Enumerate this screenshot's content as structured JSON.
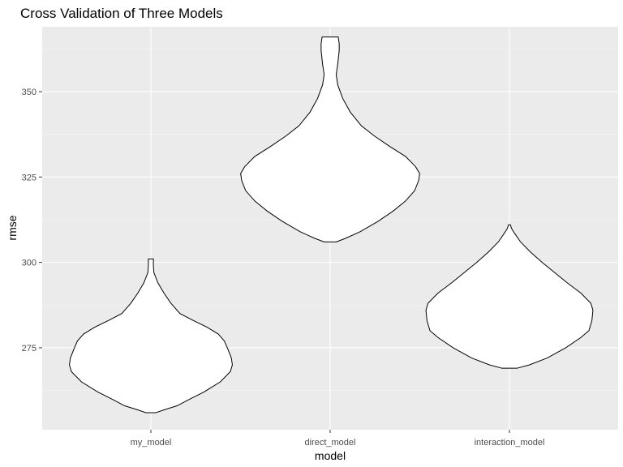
{
  "chart_data": {
    "type": "violin",
    "title": "Cross Validation of Three Models",
    "xlabel": "model",
    "ylabel": "rmse",
    "categories": [
      "my_model",
      "direct_model",
      "interaction_model"
    ],
    "ylim": [
      251,
      369
    ],
    "y_ticks": [
      275,
      300,
      325,
      350
    ],
    "grid": true,
    "colors": {
      "panel": "#ebebeb",
      "grid": "#ffffff",
      "violin_fill": "#ffffff",
      "violin_outline": "#000000"
    },
    "series": [
      {
        "category": "my_model",
        "profile": [
          [
            256,
            0.1
          ],
          [
            257,
            0.3
          ],
          [
            258,
            0.52
          ],
          [
            260,
            0.78
          ],
          [
            262,
            1.05
          ],
          [
            265,
            1.38
          ],
          [
            268,
            1.58
          ],
          [
            270,
            1.62
          ],
          [
            272,
            1.6
          ],
          [
            275,
            1.52
          ],
          [
            277,
            1.46
          ],
          [
            279,
            1.34
          ],
          [
            281,
            1.12
          ],
          [
            283,
            0.84
          ],
          [
            285,
            0.58
          ],
          [
            288,
            0.4
          ],
          [
            291,
            0.26
          ],
          [
            294,
            0.14
          ],
          [
            297,
            0.06
          ],
          [
            299,
            0.05
          ],
          [
            301,
            0.05
          ]
        ]
      },
      {
        "category": "direct_model",
        "profile": [
          [
            306,
            0.12
          ],
          [
            307,
            0.3
          ],
          [
            309,
            0.6
          ],
          [
            312,
            0.95
          ],
          [
            315,
            1.25
          ],
          [
            318,
            1.5
          ],
          [
            321,
            1.68
          ],
          [
            324,
            1.76
          ],
          [
            326,
            1.78
          ],
          [
            328,
            1.7
          ],
          [
            331,
            1.5
          ],
          [
            334,
            1.18
          ],
          [
            337,
            0.88
          ],
          [
            340,
            0.62
          ],
          [
            344,
            0.4
          ],
          [
            348,
            0.25
          ],
          [
            352,
            0.15
          ],
          [
            355,
            0.12
          ],
          [
            358,
            0.15
          ],
          [
            362,
            0.18
          ],
          [
            364,
            0.18
          ],
          [
            366,
            0.16
          ]
        ]
      },
      {
        "category": "interaction_model",
        "profile": [
          [
            269,
            0.15
          ],
          [
            270,
            0.4
          ],
          [
            272,
            0.75
          ],
          [
            275,
            1.12
          ],
          [
            278,
            1.42
          ],
          [
            280,
            1.58
          ],
          [
            283,
            1.64
          ],
          [
            286,
            1.66
          ],
          [
            288,
            1.62
          ],
          [
            291,
            1.42
          ],
          [
            294,
            1.15
          ],
          [
            297,
            0.9
          ],
          [
            300,
            0.65
          ],
          [
            303,
            0.42
          ],
          [
            306,
            0.22
          ],
          [
            309,
            0.08
          ],
          [
            310,
            0.04
          ],
          [
            311,
            0.02
          ]
        ]
      }
    ]
  }
}
